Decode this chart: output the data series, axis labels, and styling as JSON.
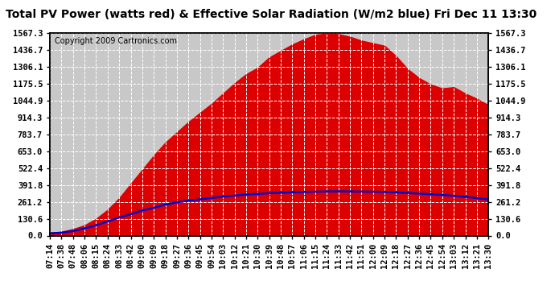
{
  "title": "Total PV Power (watts red) & Effective Solar Radiation (W/m2 blue) Fri Dec 11 13:30",
  "copyright": "Copyright 2009 Cartronics.com",
  "bg_color": "#ffffff",
  "plot_bg_color": "#c8c8c8",
  "grid_color": "#ffffff",
  "yticks": [
    0.0,
    130.6,
    261.2,
    391.8,
    522.4,
    653.0,
    783.7,
    914.3,
    1044.9,
    1175.5,
    1306.1,
    1436.7,
    1567.3
  ],
  "ylim": [
    0,
    1567.3
  ],
  "xtick_labels": [
    "07:14",
    "07:38",
    "07:48",
    "08:06",
    "08:15",
    "08:24",
    "08:33",
    "08:42",
    "09:00",
    "09:09",
    "09:18",
    "09:27",
    "09:36",
    "09:45",
    "09:54",
    "10:03",
    "10:12",
    "10:21",
    "10:30",
    "10:39",
    "10:48",
    "10:57",
    "11:06",
    "11:15",
    "11:24",
    "11:33",
    "11:42",
    "11:51",
    "12:00",
    "12:09",
    "12:18",
    "12:27",
    "12:36",
    "12:45",
    "12:54",
    "13:03",
    "13:12",
    "13:21",
    "13:30"
  ],
  "pv_power": [
    20,
    30,
    50,
    80,
    130,
    200,
    290,
    400,
    510,
    620,
    720,
    800,
    880,
    950,
    1020,
    1100,
    1180,
    1250,
    1300,
    1380,
    1430,
    1480,
    1520,
    1555,
    1565,
    1560,
    1540,
    1510,
    1490,
    1470,
    1390,
    1290,
    1220,
    1170,
    1140,
    1150,
    1100,
    1060,
    1010
  ],
  "solar_rad": [
    18,
    22,
    35,
    55,
    80,
    110,
    140,
    165,
    195,
    215,
    240,
    258,
    270,
    280,
    292,
    302,
    310,
    318,
    323,
    328,
    332,
    335,
    338,
    340,
    342,
    343,
    342,
    341,
    340,
    338,
    335,
    330,
    325,
    320,
    315,
    308,
    300,
    290,
    280
  ],
  "pv_color": "#dd0000",
  "solar_color": "#0000cc",
  "title_fontsize": 10,
  "copyright_fontsize": 7,
  "axis_label_fontsize": 7.5,
  "border_color": "#000000"
}
